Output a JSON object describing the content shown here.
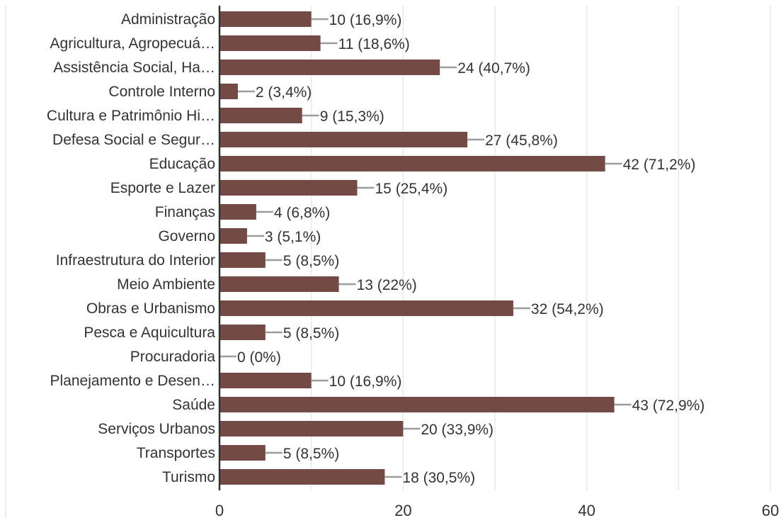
{
  "chart_data": {
    "type": "bar",
    "orientation": "horizontal",
    "categories": [
      "Administração",
      "Agricultura, Agropecuá…",
      "Assistência Social, Ha…",
      "Controle Interno",
      "Cultura e Patrimônio Hi…",
      "Defesa Social e Segur…",
      "Educação",
      "Esporte e Lazer",
      "Finanças",
      "Governo",
      "Infraestrutura do Interior",
      "Meio Ambiente",
      "Obras e Urbanismo",
      "Pesca e Aquicultura",
      "Procuradoria",
      "Planejamento e Desen…",
      "Saúde",
      "Serviços Urbanos",
      "Transportes",
      "Turismo"
    ],
    "values": [
      10,
      11,
      24,
      2,
      9,
      27,
      42,
      15,
      4,
      3,
      5,
      13,
      32,
      5,
      0,
      10,
      43,
      20,
      5,
      18
    ],
    "value_labels": [
      "10 (16,9%)",
      "11 (18,6%)",
      "24 (40,7%)",
      "2 (3,4%)",
      "9 (15,3%)",
      "27 (45,8%)",
      "42 (71,2%)",
      "15 (25,4%)",
      "4 (6,8%)",
      "3 (5,1%)",
      "5 (8,5%)",
      "13 (22%)",
      "32 (54,2%)",
      "5 (8,5%)",
      "0 (0%)",
      "10 (16,9%)",
      "43 (72,9%)",
      "20 (33,9%)",
      "5 (8,5%)",
      "18 (30,5%)"
    ],
    "title": "",
    "xlabel": "",
    "ylabel": "",
    "xlim": [
      0,
      60
    ],
    "xticks": [
      0,
      20,
      40,
      60
    ],
    "grid": true,
    "legend": "none",
    "bar_color": "#744a45",
    "leader_color": "#9e9e9e",
    "grid_color": "#e8e8e8",
    "axis_color": "#333333"
  }
}
